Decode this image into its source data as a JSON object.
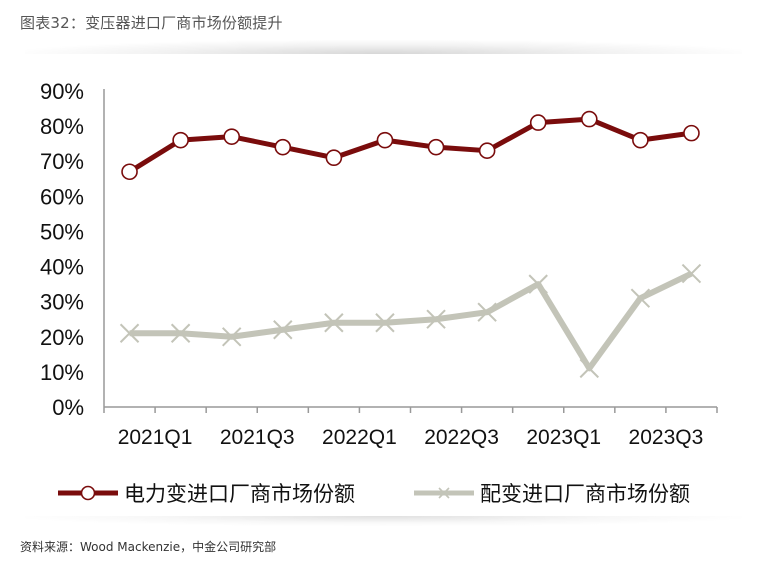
{
  "header": {
    "title": "图表32：变压器进口厂商市场份额提升"
  },
  "footer": {
    "source": "资料来源：Wood Mackenzie，中金公司研究部"
  },
  "colors": {
    "series_power": "#7a0c0c",
    "series_distribution": "#c3c4b8",
    "axis": "#999999"
  },
  "chart_data": {
    "type": "line",
    "title": "变压器进口厂商市场份额提升",
    "xlabel": "",
    "ylabel": "",
    "ylim": [
      0,
      90
    ],
    "yticks": [
      "0%",
      "10%",
      "20%",
      "30%",
      "40%",
      "50%",
      "60%",
      "70%",
      "80%",
      "90%"
    ],
    "categories": [
      "2021Q1",
      "2021Q2",
      "2021Q3",
      "2021Q4",
      "2022Q1",
      "2022Q2",
      "2022Q3",
      "2022Q4",
      "2023Q1",
      "2023Q2",
      "2023Q3",
      "2023Q4"
    ],
    "xtick_labels": [
      "2021Q1",
      "2021Q3",
      "2022Q1",
      "2022Q3",
      "2023Q1",
      "2023Q3"
    ],
    "grid": false,
    "legend_position": "bottom",
    "series": [
      {
        "name": "电力变进口厂商市场份额",
        "marker": "circle",
        "color": "#7a0c0c",
        "values": [
          67,
          76,
          77,
          74,
          71,
          76,
          74,
          73,
          81,
          82,
          76,
          78
        ]
      },
      {
        "name": "配变进口厂商市场份额",
        "marker": "x",
        "color": "#c3c4b8",
        "values": [
          21,
          21,
          20,
          22,
          24,
          24,
          25,
          27,
          35,
          11,
          31,
          38
        ]
      }
    ]
  }
}
